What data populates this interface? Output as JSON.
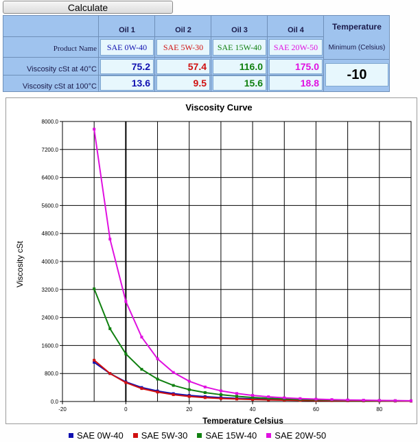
{
  "toolbar": {
    "calculate_label": "Calculate"
  },
  "table": {
    "row_labels": {
      "product_name": "Product Name",
      "visc40": "Viscosity cSt at 40°C",
      "visc100": "Viscosity cSt at 100°C"
    },
    "oils": [
      {
        "header": "Oil 1",
        "name": "SAE 0W-40",
        "v40": "75.2",
        "v100": "13.6",
        "color": "#1010b0"
      },
      {
        "header": "Oil 2",
        "name": "SAE 5W-30",
        "v40": "57.4",
        "v100": "9.5",
        "color": "#d01010"
      },
      {
        "header": "Oil 3",
        "name": "SAE 15W-40",
        "v40": "116.0",
        "v100": "15.6",
        "color": "#108010"
      },
      {
        "header": "Oil 4",
        "name": "SAE 20W-50",
        "v40": "175.0",
        "v100": "18.8",
        "color": "#e010e0"
      }
    ],
    "temperature": {
      "header": "Temperature",
      "sub": "Minimum (Celsius)",
      "value": "-10"
    }
  },
  "chart_data": {
    "type": "line",
    "title": "Viscosity Curve",
    "xlabel": "Temperature Celsius",
    "ylabel": "Viscosity cSt",
    "xlim": [
      -20,
      90
    ],
    "ylim": [
      0,
      8000
    ],
    "xticks": [
      "-20",
      "0",
      "20",
      "40",
      "60",
      "80"
    ],
    "xtick_values": [
      -20,
      0,
      20,
      40,
      60,
      80
    ],
    "yticks": [
      "0.0",
      "800.0",
      "1600.0",
      "2400.0",
      "3200.0",
      "4000.0",
      "4800.0",
      "5600.0",
      "6400.0",
      "7200.0",
      "8000.0"
    ],
    "ytick_values": [
      0,
      800,
      1600,
      2400,
      3200,
      4000,
      4800,
      5600,
      6400,
      7200,
      8000
    ],
    "grid": true,
    "legend": "bottom",
    "x": [
      -10,
      -5,
      0,
      5,
      10,
      15,
      20,
      25,
      30,
      35,
      40,
      45,
      50,
      55,
      60,
      65,
      70,
      75,
      80,
      85,
      90
    ],
    "series": [
      {
        "name": "SAE 0W-40",
        "color": "#1010b0",
        "values": [
          1120,
          800,
          560,
          400,
          300,
          225,
          175,
          140,
          110,
          90,
          75,
          62,
          52,
          44,
          37,
          32,
          27,
          24,
          21,
          18,
          16
        ]
      },
      {
        "name": "SAE 5W-30",
        "color": "#d01010",
        "values": [
          1180,
          800,
          540,
          370,
          270,
          195,
          145,
          110,
          85,
          70,
          57,
          47,
          39,
          32,
          27,
          23,
          20,
          17,
          15,
          13,
          11
        ]
      },
      {
        "name": "SAE 15W-40",
        "color": "#108010",
        "values": [
          3220,
          2080,
          1360,
          920,
          640,
          460,
          340,
          255,
          195,
          150,
          116,
          92,
          74,
          60,
          50,
          41,
          35,
          29,
          25,
          21,
          18
        ]
      },
      {
        "name": "SAE 20W-50",
        "color": "#e010e0",
        "values": [
          7780,
          4640,
          2860,
          1840,
          1220,
          830,
          580,
          415,
          305,
          230,
          175,
          135,
          106,
          84,
          68,
          55,
          45,
          38,
          32,
          27,
          23
        ]
      }
    ]
  }
}
